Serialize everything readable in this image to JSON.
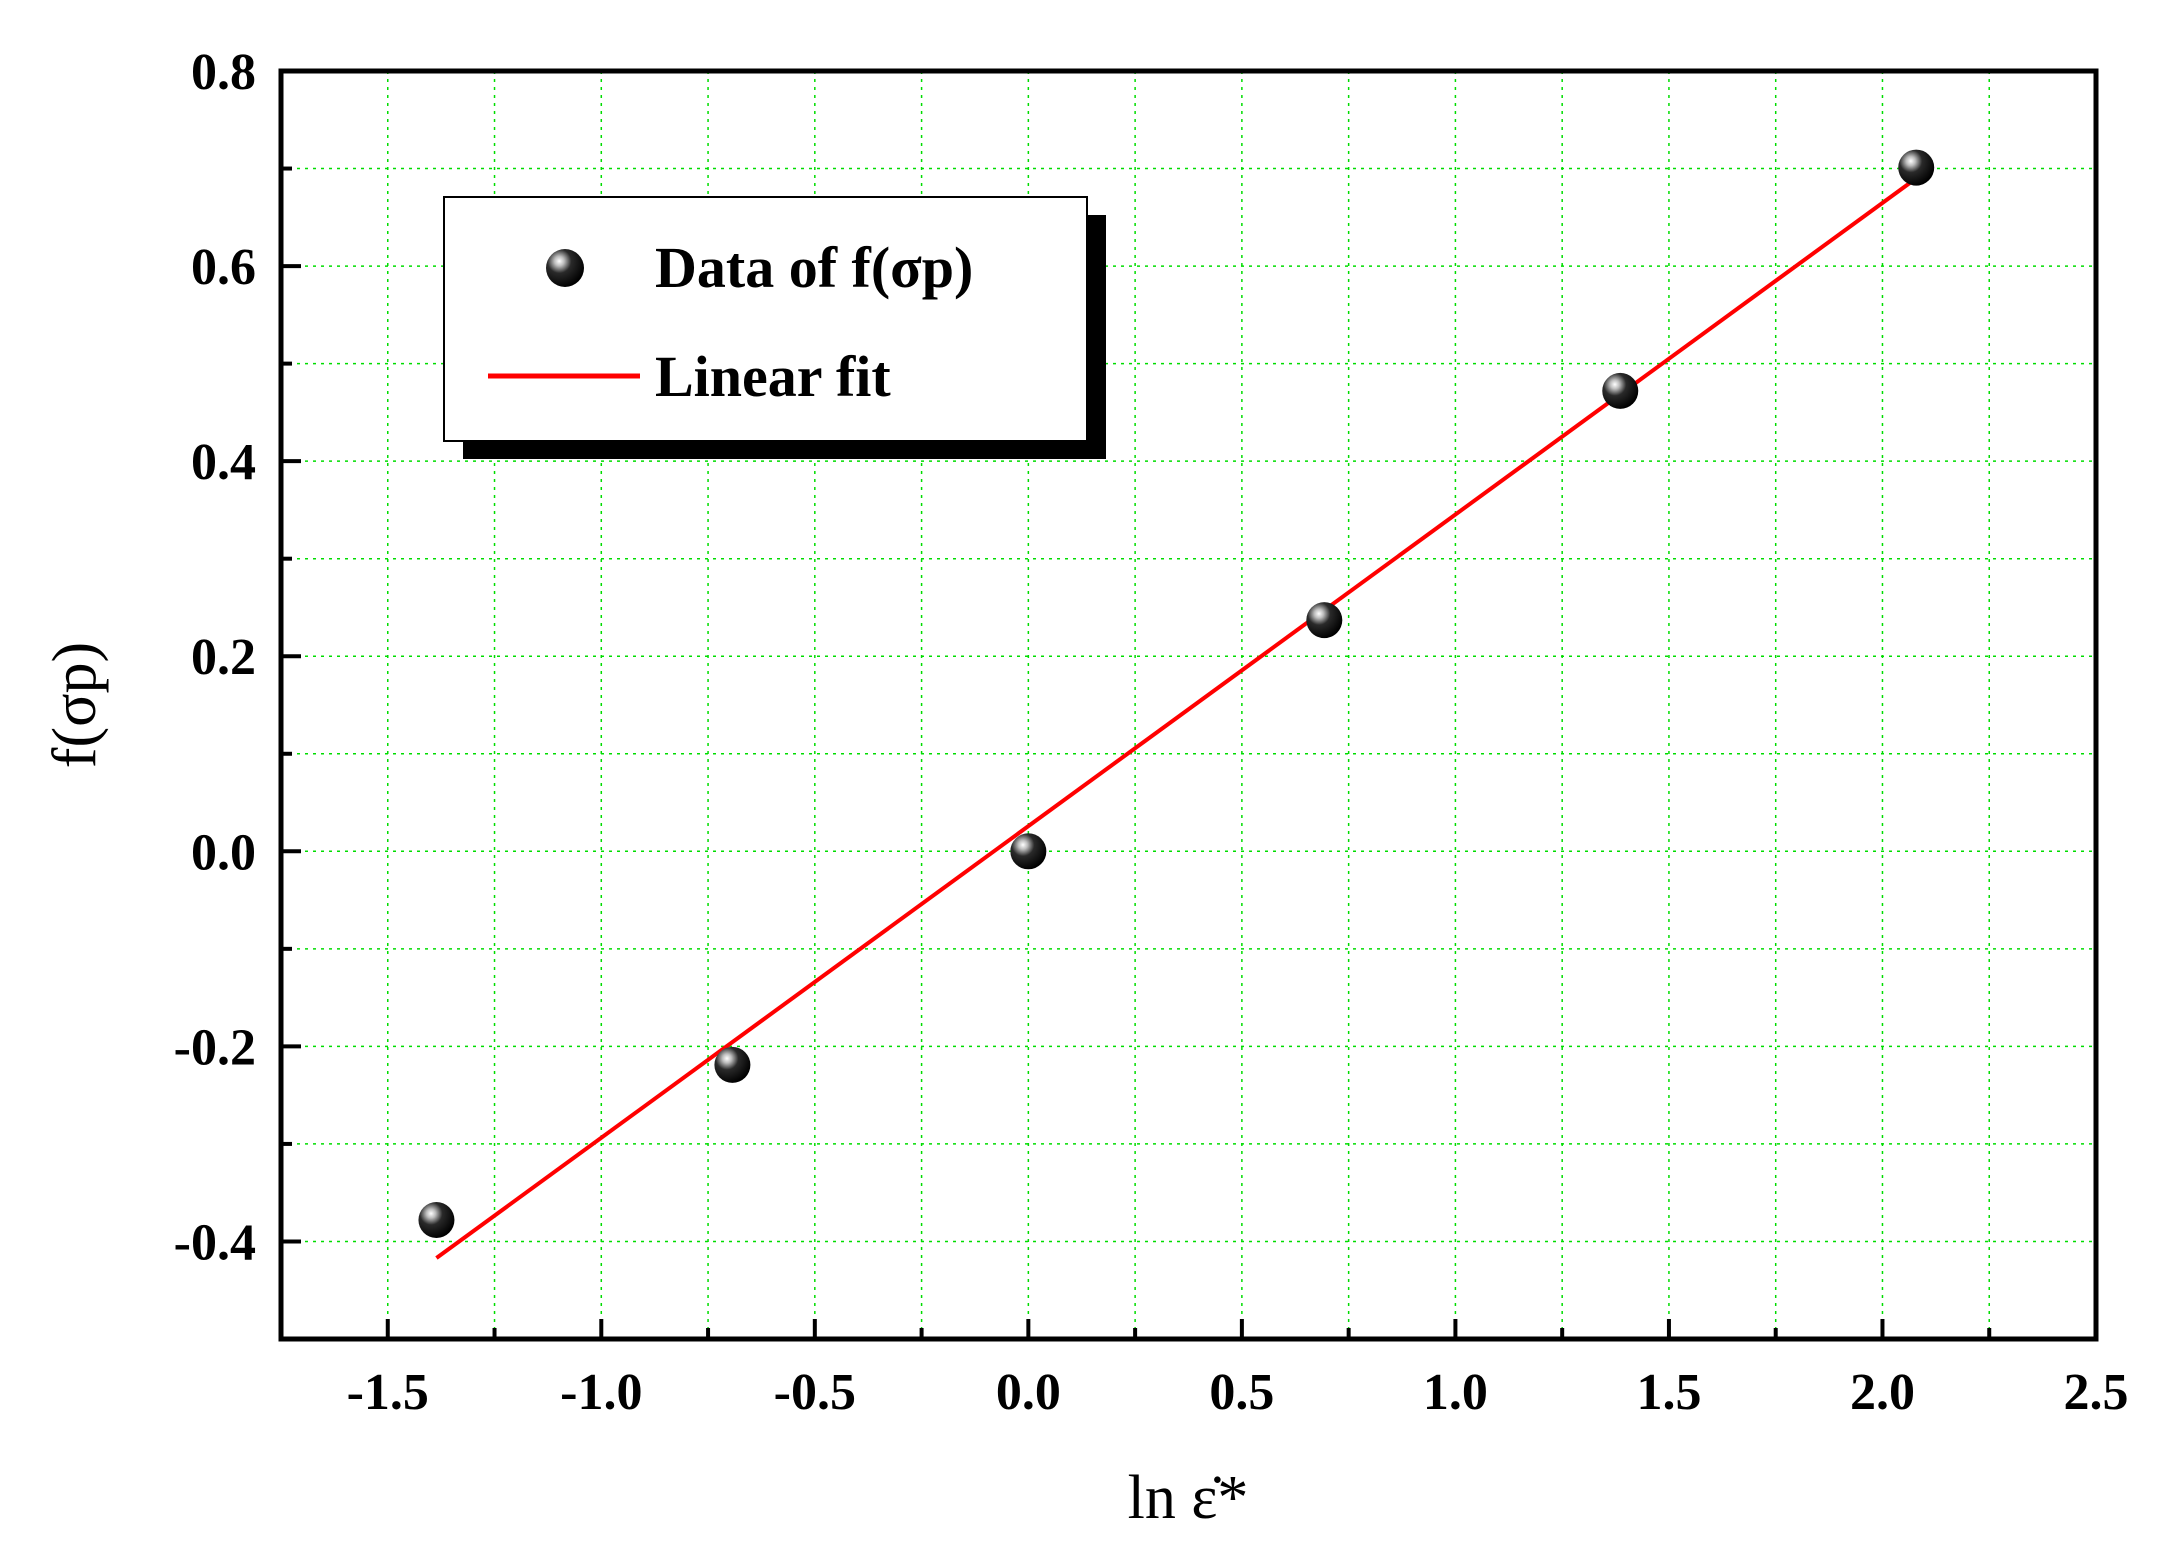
{
  "chart_data": {
    "type": "scatter",
    "xlabel": "ln ε̇*",
    "ylabel": "f(σp)",
    "xlim": [
      -1.75,
      2.5
    ],
    "ylim": [
      -0.5,
      0.8
    ],
    "x_ticks": [
      "-1.5",
      "-1.0",
      "-0.5",
      "0.0",
      "0.5",
      "1.0",
      "1.5",
      "2.0",
      "2.5"
    ],
    "y_ticks": [
      "-0.4",
      "-0.2",
      "0.0",
      "0.2",
      "0.4",
      "0.6",
      "0.8"
    ],
    "grid": true,
    "legend_position": "top-left",
    "series": [
      {
        "name": "Data of f(σp)",
        "kind": "scatter",
        "x": [
          -1.386,
          -0.693,
          0.0,
          0.693,
          1.386,
          2.079
        ],
        "y": [
          -0.378,
          -0.219,
          0.0,
          0.237,
          0.472,
          0.701
        ]
      },
      {
        "name": "Linear fit",
        "kind": "line",
        "color": "#ff0000",
        "x": [
          -1.386,
          2.079
        ],
        "y": [
          -0.417,
          0.69
        ]
      }
    ]
  }
}
